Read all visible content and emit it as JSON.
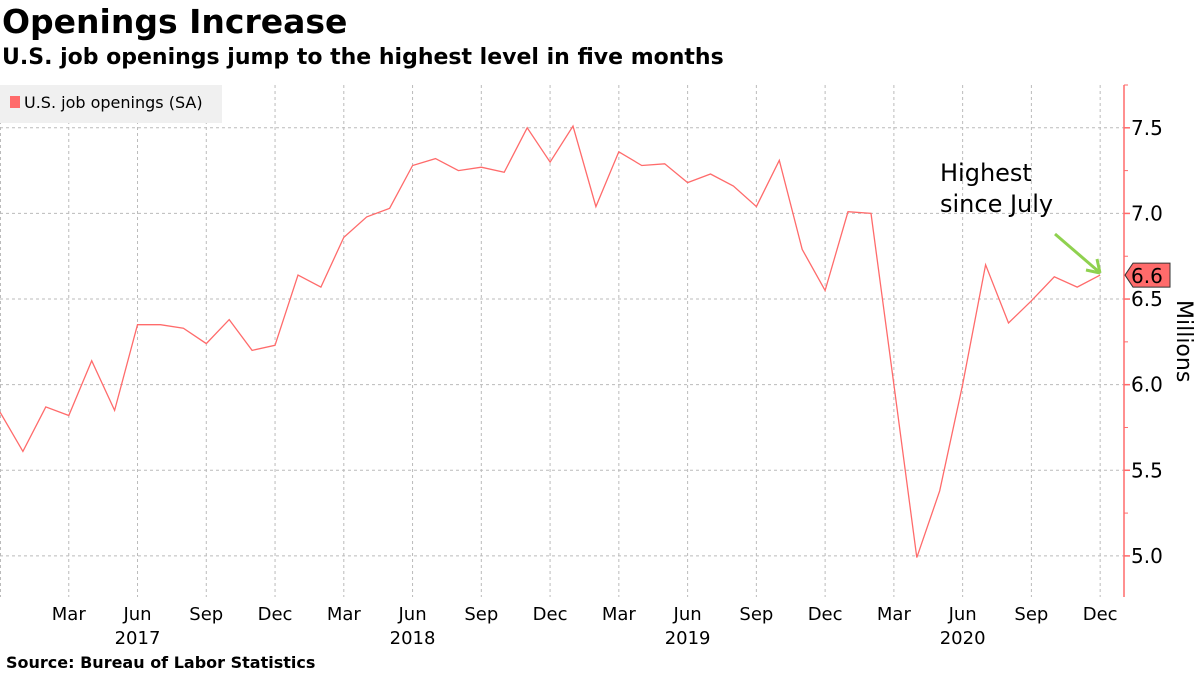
{
  "chart_data": {
    "type": "line",
    "title": "Openings Increase",
    "subtitle": "U.S. job openings jump to the highest level in five months",
    "source": "Source: Bureau of Labor Statistics",
    "ylabel": "Millions",
    "ylim": [
      4.76,
      7.75
    ],
    "yticks": [
      "5.0",
      "5.5",
      "6.0",
      "6.5",
      "7.0",
      "7.5"
    ],
    "ytick_values": [
      5.0,
      5.5,
      6.0,
      6.5,
      7.0,
      7.5
    ],
    "grid": true,
    "legend": {
      "position": "top-left",
      "entries": [
        "U.S. job openings (SA)"
      ]
    },
    "x_start": "Dec 2016",
    "x_end": "Dec 2020",
    "x_interval": "monthly",
    "xticks": [
      {
        "month_index": 3,
        "label": "Mar",
        "year": ""
      },
      {
        "month_index": 6,
        "label": "Jun",
        "year": "2017"
      },
      {
        "month_index": 9,
        "label": "Sep",
        "year": ""
      },
      {
        "month_index": 12,
        "label": "Dec",
        "year": ""
      },
      {
        "month_index": 15,
        "label": "Mar",
        "year": ""
      },
      {
        "month_index": 18,
        "label": "Jun",
        "year": "2018"
      },
      {
        "month_index": 21,
        "label": "Sep",
        "year": ""
      },
      {
        "month_index": 24,
        "label": "Dec",
        "year": ""
      },
      {
        "month_index": 27,
        "label": "Mar",
        "year": ""
      },
      {
        "month_index": 30,
        "label": "Jun",
        "year": "2019"
      },
      {
        "month_index": 33,
        "label": "Sep",
        "year": ""
      },
      {
        "month_index": 36,
        "label": "Dec",
        "year": ""
      },
      {
        "month_index": 39,
        "label": "Mar",
        "year": ""
      },
      {
        "month_index": 42,
        "label": "Jun",
        "year": "2020"
      },
      {
        "month_index": 45,
        "label": "Sep",
        "year": ""
      },
      {
        "month_index": 48,
        "label": "Dec",
        "year": ""
      }
    ],
    "series": [
      {
        "name": "U.S. job openings (SA)",
        "color": "#ff6b6b",
        "values": [
          5.84,
          5.61,
          5.87,
          5.82,
          6.14,
          5.85,
          6.35,
          6.35,
          6.33,
          6.24,
          6.38,
          6.2,
          6.23,
          6.64,
          6.57,
          6.86,
          6.98,
          7.03,
          7.28,
          7.32,
          7.25,
          7.27,
          7.24,
          7.5,
          7.3,
          7.51,
          7.04,
          7.36,
          7.28,
          7.29,
          7.18,
          7.23,
          7.16,
          7.04,
          7.31,
          6.79,
          6.55,
          7.01,
          7.0,
          6.0,
          4.99,
          5.38,
          6.0,
          6.7,
          6.36,
          6.49,
          6.63,
          6.57,
          6.64
        ]
      }
    ],
    "last_value_label": "6.6",
    "annotation": {
      "line1": "Highest",
      "line2": "since July",
      "arrow_color": "#8fd14f"
    }
  }
}
